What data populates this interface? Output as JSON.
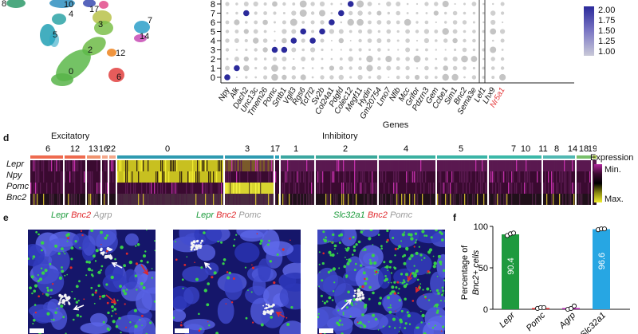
{
  "panel_letters": {
    "d": "d",
    "e": "e",
    "f": "f"
  },
  "umap": {
    "cluster_labels": [
      "8",
      "10",
      "17",
      "4",
      "3",
      "5",
      "7",
      "14",
      "2",
      "12",
      "0",
      "6"
    ]
  },
  "dotplot": {
    "y_ticks": [
      "0",
      "1",
      "2",
      "3",
      "4",
      "5",
      "6",
      "7",
      "8"
    ],
    "genes": [
      "Npy",
      "Alk",
      "Dach2",
      "Unc13c",
      "Tmem26",
      "Pomc",
      "Sntb1",
      "Vgll3",
      "Rgs6",
      "Tcf7l2",
      "Sv2b",
      "Col24a1",
      "Pdgfd",
      "Colec12",
      "Megf11",
      "Hydin",
      "Gm20754",
      "Lmo7",
      "Nfib",
      "Mcc",
      "Grifor",
      "Pdzrn3",
      "Gem",
      "Ccbe1",
      "Sim1",
      "Bnc2",
      "Sema3e",
      "Lef1",
      "Lhx9",
      "Nr5a1"
    ],
    "xlabel": "Genes",
    "legend_ticks": [
      "2.00",
      "1.75",
      "1.50",
      "1.25",
      "1.00"
    ],
    "colors": {
      "high": "#2b2a9b",
      "low": "#c8c8c8",
      "highlight_gene": "#e5393b"
    }
  },
  "heatmap": {
    "group_labels": {
      "excitatory": "Excitatory",
      "inhibitory": "Inhibitory"
    },
    "cluster_labels": [
      "6",
      "12",
      "13",
      "16",
      "22",
      "0",
      "3",
      "17",
      "1",
      "2",
      "4",
      "5",
      "7",
      "8",
      "10",
      "11",
      "14",
      "18",
      "19"
    ],
    "row_labels": [
      "Lepr",
      "Npy",
      "Pomc",
      "Bnc2"
    ],
    "legend_title": "Expression",
    "legend_min": "Min.",
    "legend_max": "Max."
  },
  "micrographs": {
    "panel1": {
      "t1": "Lepr",
      "t2": "Bnc2",
      "t3": "Agrp"
    },
    "panel2": {
      "t1": "Lepr",
      "t2": "Bnc2",
      "t3": "Pomc"
    },
    "panel3": {
      "t1": "Slc32a1",
      "t2": "Bnc2",
      "t3": "Pomc"
    },
    "colors": {
      "green": "#1a9a3a",
      "red": "#e0282c",
      "gray": "#9a9a9a"
    }
  },
  "chart_data": {
    "type": "bar",
    "ylabel_line1": "Percentage of",
    "ylabel_line2": "Bnc2+ cells",
    "ylim": [
      0,
      100
    ],
    "yticks": [
      "0",
      "50",
      "100"
    ],
    "categories": [
      "Lepr",
      "Pomc",
      "Agrp",
      "Slc32a1"
    ],
    "category_display": [
      "Lepr",
      "Pomc",
      "Agrp",
      "Slc32a1"
    ],
    "values": [
      90.4,
      1.5,
      1.5,
      96.6
    ],
    "value_labels": [
      "90.4",
      "",
      "",
      "96.6"
    ],
    "points": [
      [
        89,
        91,
        92
      ],
      [
        1,
        2,
        2
      ],
      [
        0,
        1,
        4
      ],
      [
        96,
        97,
        97
      ]
    ],
    "colors": [
      "#1e9a3e",
      "#e0282c",
      "#b21fb0",
      "#27a6e3"
    ]
  }
}
